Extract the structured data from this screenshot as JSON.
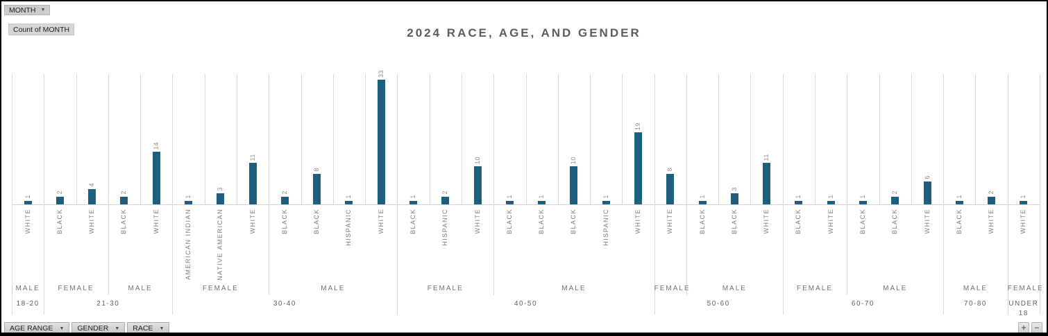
{
  "controls": {
    "month_pill": {
      "label": "MONTH",
      "arrow": "▼"
    },
    "count_label": "Count of MONTH",
    "filters": [
      {
        "label": "AGE RANGE",
        "arrow": "▼"
      },
      {
        "label": "GENDER",
        "arrow": "▼"
      },
      {
        "label": "RACE",
        "arrow": "▼"
      }
    ],
    "zoom_in": "+",
    "zoom_out": "−"
  },
  "chart_data": {
    "type": "bar",
    "title": "2024 RACE, AGE, AND GENDER",
    "value_field": "Count of MONTH",
    "orientation": "vertical",
    "grid": "column-separators-only",
    "ylim": [
      0,
      33
    ],
    "bar_color": "#1e5f80",
    "columns": [
      {
        "age": "18-20",
        "gender": "MALE",
        "race": "WHITE",
        "value": 1
      },
      {
        "age": "21-30",
        "gender": "FEMALE",
        "race": "BLACK",
        "value": 2
      },
      {
        "age": "21-30",
        "gender": "FEMALE",
        "race": "WHITE",
        "value": 4
      },
      {
        "age": "21-30",
        "gender": "MALE",
        "race": "BLACK",
        "value": 2
      },
      {
        "age": "21-30",
        "gender": "MALE",
        "race": "WHITE",
        "value": 14
      },
      {
        "age": "30-40",
        "gender": "FEMALE",
        "race": "AMERICAN INDIAN",
        "value": 1
      },
      {
        "age": "30-40",
        "gender": "FEMALE",
        "race": "NATIVE AMERICAN",
        "value": 3
      },
      {
        "age": "30-40",
        "gender": "FEMALE",
        "race": "WHITE",
        "value": 11
      },
      {
        "age": "30-40",
        "gender": "MALE",
        "race": "BLACK",
        "value": 2
      },
      {
        "age": "30-40",
        "gender": "MALE",
        "race": "BLACK",
        "value": 8
      },
      {
        "age": "30-40",
        "gender": "MALE",
        "race": "HISPANIC",
        "value": 1
      },
      {
        "age": "30-40",
        "gender": "MALE",
        "race": "WHITE",
        "value": 33
      },
      {
        "age": "40-50",
        "gender": "FEMALE",
        "race": "BLACK",
        "value": 1
      },
      {
        "age": "40-50",
        "gender": "FEMALE",
        "race": "HISPANIC",
        "value": 2
      },
      {
        "age": "40-50",
        "gender": "FEMALE",
        "race": "WHITE",
        "value": 10
      },
      {
        "age": "40-50",
        "gender": "MALE",
        "race": "BLACK",
        "value": 1
      },
      {
        "age": "40-50",
        "gender": "MALE",
        "race": "BLACK",
        "value": 1
      },
      {
        "age": "40-50",
        "gender": "MALE",
        "race": "BLACK",
        "value": 10
      },
      {
        "age": "40-50",
        "gender": "MALE",
        "race": "HISPANIC",
        "value": 1
      },
      {
        "age": "40-50",
        "gender": "MALE",
        "race": "WHITE",
        "value": 19
      },
      {
        "age": "50-60",
        "gender": "FEMALE",
        "race": "WHITE",
        "value": 8
      },
      {
        "age": "50-60",
        "gender": "MALE",
        "race": "BLACK",
        "value": 1
      },
      {
        "age": "50-60",
        "gender": "MALE",
        "race": "BLACK",
        "value": 3
      },
      {
        "age": "50-60",
        "gender": "MALE",
        "race": "WHITE",
        "value": 11
      },
      {
        "age": "60-70",
        "gender": "FEMALE",
        "race": "BLACK",
        "value": 1
      },
      {
        "age": "60-70",
        "gender": "FEMALE",
        "race": "WHITE",
        "value": 1
      },
      {
        "age": "60-70",
        "gender": "MALE",
        "race": "BLACK",
        "value": 1
      },
      {
        "age": "60-70",
        "gender": "MALE",
        "race": "BLACK",
        "value": 2
      },
      {
        "age": "60-70",
        "gender": "MALE",
        "race": "WHITE",
        "value": 6
      },
      {
        "age": "70-80",
        "gender": "MALE",
        "race": "BLACK",
        "value": 1
      },
      {
        "age": "70-80",
        "gender": "MALE",
        "race": "WHITE",
        "value": 2
      },
      {
        "age": "UNDER 18",
        "gender": "FEMALE",
        "race": "WHITE",
        "value": 1
      }
    ]
  }
}
